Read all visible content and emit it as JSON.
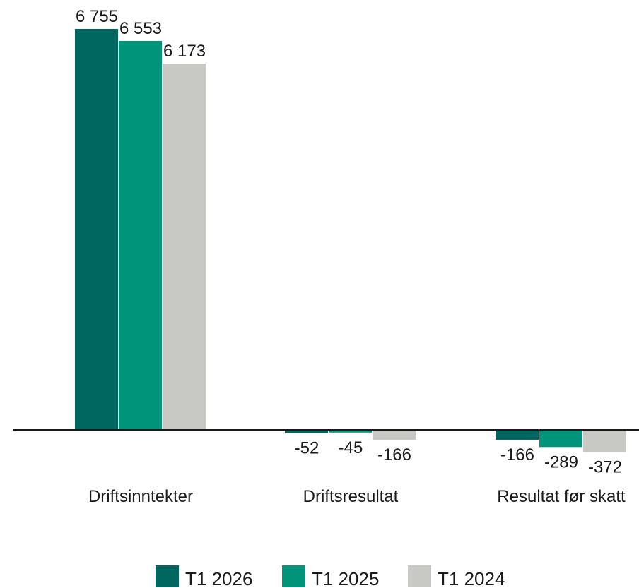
{
  "chart_data": {
    "type": "bar",
    "categories": [
      "Driftsinntekter",
      "Driftsresultat",
      "Resultat før skatt"
    ],
    "series": [
      {
        "name": "T1 2026",
        "color": "#006760",
        "values": [
          6755,
          -52,
          -166
        ],
        "labels": [
          "6 755",
          "-52",
          "-166"
        ]
      },
      {
        "name": "T1 2025",
        "color": "#00957A",
        "values": [
          6553,
          -45,
          -289
        ],
        "labels": [
          "6 553",
          "-45",
          "-289"
        ]
      },
      {
        "name": "T1 2024",
        "color": "#C8C9C4",
        "values": [
          6173,
          -166,
          -372
        ],
        "labels": [
          "6 173",
          "-166",
          "-372"
        ]
      }
    ],
    "title": "",
    "xlabel": "",
    "ylabel": "",
    "ylim": [
      -500,
      7000
    ],
    "grid": false,
    "legend_position": "bottom-center"
  }
}
